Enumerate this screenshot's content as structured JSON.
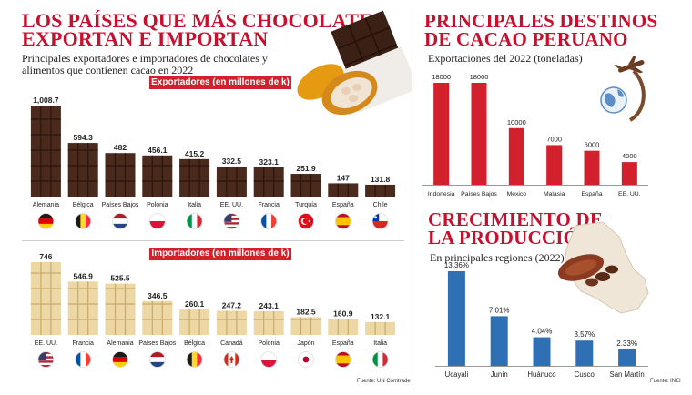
{
  "left": {
    "title_line1": "LOS PAÍSES QUE MÁS CHOCOLATE",
    "title_line2": "EXPORTAN E IMPORTAN",
    "subtitle_line1": "Principales exportadores e importadores de chocolates y",
    "subtitle_line2": "alimentos que contienen cacao en 2022",
    "source": "Fuente: UN Comtrade"
  },
  "right_top": {
    "title_line1": "PRINCIPALES DESTINOS",
    "title_line2": "DE CACAO PERUANO",
    "subtitle": "Exportaciones del 2022 (toneladas)"
  },
  "right_bottom": {
    "title_line1": "CRECIMIENTO DE",
    "title_line2": "LA PRODUCCIÓN",
    "subtitle": "En principales regiones (2022)",
    "source": "Fuente: INEI"
  },
  "colors": {
    "accent": "#c8102e",
    "dark_chocolate": "#4a2a1c",
    "white_chocolate": "#ecd7a5",
    "red_bar": "#d3202d",
    "blue_bar": "#2f6fb3"
  },
  "chart_data": [
    {
      "type": "bar",
      "banner": "Exportadores (en millones de k)",
      "categories": [
        "Alemania",
        "Bélgica",
        "Países Bajos",
        "Polonia",
        "Italia",
        "EE. UU.",
        "Francia",
        "Turquía",
        "España",
        "Chile"
      ],
      "values": [
        1008.7,
        594.3,
        482,
        456.1,
        415.2,
        332.5,
        323.1,
        251.9,
        147,
        131.8
      ],
      "labels": [
        "1,008.7",
        "594.3",
        "482",
        "456.1",
        "415.2",
        "332.5",
        "323.1",
        "251.9",
        "147",
        "131.8"
      ],
      "flags": [
        "germany",
        "belgium",
        "netherlands",
        "poland",
        "italy",
        "usa",
        "france",
        "turkey",
        "spain",
        "chile"
      ]
    },
    {
      "type": "bar",
      "banner": "Importadores (en millones de k)",
      "categories": [
        "EE. UU.",
        "Francia",
        "Alemania",
        "Países Bajos",
        "Bélgica",
        "Canadá",
        "Polonia",
        "Japón",
        "España",
        "Italia"
      ],
      "values": [
        746,
        546.9,
        525.5,
        346.5,
        260.1,
        247.2,
        243.1,
        182.5,
        160.9,
        132.1
      ],
      "labels": [
        "746",
        "546.9",
        "525.5",
        "346.5",
        "260.1",
        "247.2",
        "243.1",
        "182.5",
        "160.9",
        "132.1"
      ],
      "flags": [
        "usa",
        "france",
        "germany",
        "netherlands",
        "belgium",
        "canada",
        "poland",
        "japan",
        "spain",
        "italy"
      ]
    },
    {
      "type": "bar",
      "categories": [
        "Indonesia",
        "Países Bajos",
        "México",
        "Malasia",
        "España",
        "EE. UU."
      ],
      "values": [
        18000,
        18000,
        10000,
        7000,
        6000,
        4000
      ],
      "labels": [
        "18000",
        "18000",
        "10000",
        "7000",
        "6000",
        "4000"
      ]
    },
    {
      "type": "bar",
      "categories": [
        "Ucayali",
        "Junín",
        "Huánuco",
        "Cusco",
        "San Martín"
      ],
      "values": [
        13.36,
        7.01,
        4.04,
        3.57,
        2.33
      ],
      "labels": [
        "13.36%",
        "7.01%",
        "4.04%",
        "3.57%",
        "2.33%"
      ]
    }
  ]
}
